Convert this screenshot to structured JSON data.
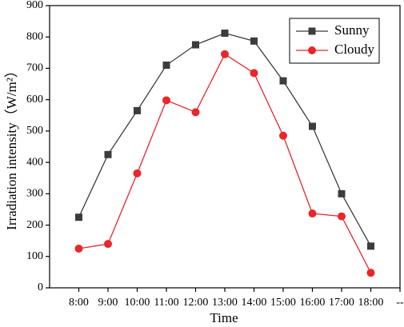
{
  "chart_data": {
    "type": "line",
    "x_label": "Time",
    "y_label": "Irradiation intensity（W/m²）",
    "categories": [
      "8:00",
      "9:00",
      "10:00",
      "11:00",
      "12:00",
      "13:00",
      "14:00",
      "15:00",
      "16:00",
      "17:00",
      "18:00",
      "--"
    ],
    "series": [
      {
        "name": "Sunny",
        "color": "#3c3c3c",
        "marker": "square",
        "values": [
          225,
          425,
          565,
          710,
          775,
          812,
          787,
          660,
          515,
          300,
          133,
          null
        ]
      },
      {
        "name": "Cloudy",
        "color": "#e8262b",
        "marker": "circle",
        "values": [
          125,
          140,
          365,
          598,
          560,
          745,
          685,
          485,
          237,
          228,
          48,
          null
        ]
      }
    ],
    "ylim": [
      0,
      900
    ],
    "yticks": [
      0,
      100,
      200,
      300,
      400,
      500,
      600,
      700,
      800,
      900
    ],
    "legend": "upper right"
  }
}
